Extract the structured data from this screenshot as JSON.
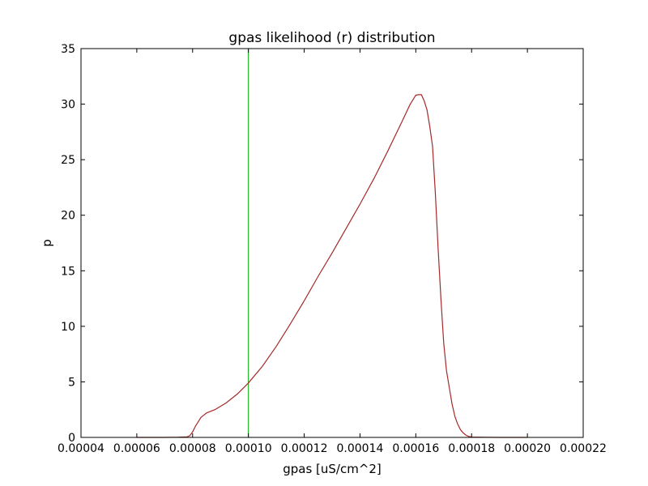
{
  "chart_data": {
    "type": "line",
    "title": "gpas likelihood (r) distribution",
    "xlabel": "gpas [uS/cm^2]",
    "ylabel": "p",
    "xlim": [
      4e-05,
      0.00022
    ],
    "ylim": [
      0,
      35
    ],
    "x_ticks": [
      4e-05,
      6e-05,
      8e-05,
      0.0001,
      0.00012,
      0.00014,
      0.00016,
      0.00018,
      0.0002,
      0.00022
    ],
    "x_tick_labels": [
      "0.00004",
      "0.00006",
      "0.00008",
      "0.00010",
      "0.00012",
      "0.00014",
      "0.00016",
      "0.00018",
      "0.00020",
      "0.00022"
    ],
    "y_ticks": [
      0,
      5,
      10,
      15,
      20,
      25,
      30,
      35
    ],
    "y_tick_labels": [
      "0",
      "5",
      "10",
      "15",
      "20",
      "25",
      "30",
      "35"
    ],
    "grid": false,
    "series": [
      {
        "color": "#a52a2a",
        "x": [
          6e-05,
          6.5e-05,
          7e-05,
          7.5e-05,
          7.8e-05,
          7.9e-05,
          8e-05,
          8.1e-05,
          8.2e-05,
          8.3e-05,
          8.4e-05,
          8.5e-05,
          8.6e-05,
          8.8e-05,
          9e-05,
          9.2e-05,
          9.4e-05,
          9.6e-05,
          9.8e-05,
          0.0001,
          0.000105,
          0.00011,
          0.000115,
          0.00012,
          0.000125,
          0.00013,
          0.000135,
          0.00014,
          0.000145,
          0.00015,
          0.000155,
          0.000158,
          0.000159,
          0.00016,
          0.000161,
          0.000162,
          0.000163,
          0.000164,
          0.000165,
          0.000166,
          0.000167,
          0.000168,
          0.000169,
          0.00017,
          0.000171,
          0.000172,
          0.000173,
          0.000174,
          0.000175,
          0.000176,
          0.000177,
          0.000178,
          0.000179,
          0.00018,
          0.000185,
          0.00019,
          0.000195,
          0.0002
        ],
        "y": [
          0,
          0,
          0,
          0.02,
          0.05,
          0.15,
          0.5,
          1.0,
          1.4,
          1.8,
          2.0,
          2.2,
          2.3,
          2.5,
          2.8,
          3.1,
          3.5,
          3.9,
          4.4,
          4.9,
          6.4,
          8.2,
          10.2,
          12.3,
          14.5,
          16.6,
          18.8,
          21.0,
          23.3,
          25.8,
          28.4,
          30.0,
          30.4,
          30.8,
          30.85,
          30.85,
          30.3,
          29.5,
          28.0,
          26.2,
          22.0,
          17.0,
          12.5,
          8.5,
          6.0,
          4.5,
          3.0,
          1.9,
          1.2,
          0.7,
          0.4,
          0.2,
          0.08,
          0.03,
          0.01,
          0,
          0,
          0
        ]
      }
    ],
    "vertical_lines": [
      {
        "x": 0.0001,
        "color": "#00aa00"
      }
    ]
  }
}
